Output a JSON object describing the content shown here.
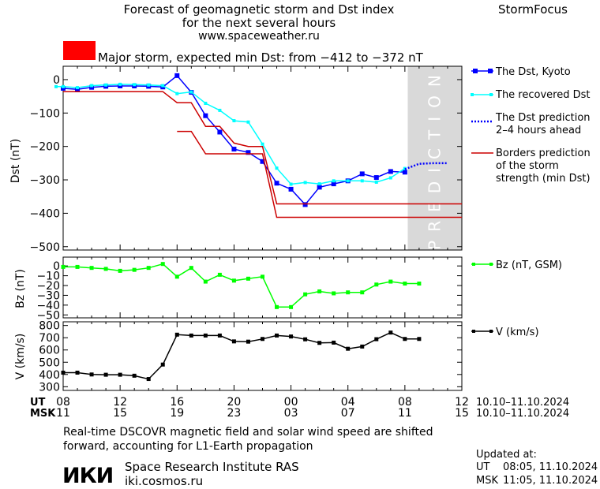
{
  "header": {
    "title_line1": "Forecast of geomagnetic storm and Dst index",
    "title_line2": "for the next several hours",
    "url": "www.spaceweather.ru",
    "brand": "StormFocus"
  },
  "alert": {
    "text": "Major storm, expected min Dst: from −412 to −372 nT",
    "color": "#ff0000"
  },
  "prediction_label": "PREDICTION",
  "legend": {
    "dst_kyoto": "The Dst, Kyoto",
    "recovered": "The recovered Dst",
    "prediction_1": "The Dst prediction",
    "prediction_2": "2–4 hours ahead",
    "borders_1": "Borders prediction",
    "borders_2": "of the storm",
    "borders_3": "strength (min Dst)",
    "bz": "Bz (nT, GSM)",
    "v": "V (km/s)"
  },
  "time_axis": {
    "ut_label": "UT",
    "msk_label": "MSK",
    "ut_ticks": [
      "08",
      "12",
      "16",
      "20",
      "00",
      "04",
      "08",
      "12"
    ],
    "msk_ticks": [
      "11",
      "15",
      "19",
      "23",
      "03",
      "07",
      "11",
      "15"
    ],
    "ut_range": "10.10–11.10.2024",
    "msk_range": "10.10–11.10.2024"
  },
  "footer": {
    "note_line1": "Real-time DSCOVR magnetic field and solar wind speed are shifted",
    "note_line2": "forward, accounting for L1-Earth propagation",
    "logo": "ИКИ",
    "institute": "Space Research Institute RAS",
    "site": "iki.cosmos.ru",
    "updated_label": "Updated at:",
    "updated_ut_label": "UT",
    "updated_ut": "08:05, 11.10.2024",
    "updated_msk_label": "MSK",
    "updated_msk": "11:05, 11.10.2024"
  },
  "colors": {
    "dst_kyoto": "#0000ff",
    "recovered": "#00ffff",
    "prediction": "#0000ff",
    "borders": "#cc0000",
    "bz": "#00ff00",
    "v": "#000000",
    "prediction_zone": "#d9d9d9"
  },
  "chart_data": [
    {
      "type": "line",
      "panel": "Dst",
      "ylabel": "Dst (nT)",
      "xlabel": "UT",
      "x_unit": "hours from 08 UT 10.10.2024",
      "xlim": [
        0,
        28
      ],
      "ylim": [
        -510,
        40
      ],
      "yticks": [
        0,
        -100,
        -200,
        -300,
        -400,
        -500
      ],
      "ytick_labels": [
        "0",
        "−100",
        "−200",
        "−300",
        "−400",
        "−500"
      ],
      "prediction_zone": [
        24.2,
        28
      ],
      "series": [
        {
          "name": "The Dst, Kyoto",
          "x": [
            0,
            1,
            2,
            3,
            4,
            5,
            6,
            7,
            8,
            9,
            10,
            11,
            12,
            13,
            14,
            15,
            16,
            17,
            18,
            19,
            20,
            21,
            22,
            23,
            24
          ],
          "y": [
            -26,
            -29,
            -23,
            -20,
            -19,
            -19,
            -20,
            -22,
            12,
            -38,
            -108,
            -157,
            -208,
            -218,
            -245,
            -310,
            -328,
            -374,
            -322,
            -312,
            -303,
            -282,
            -293,
            -275,
            -277
          ]
        },
        {
          "name": "The recovered Dst",
          "x": [
            -0.5,
            0,
            1,
            2,
            3,
            4,
            5,
            6,
            7,
            8,
            9,
            10,
            11,
            12,
            13,
            14,
            15,
            16,
            17,
            18,
            19,
            20,
            21,
            22,
            23,
            24
          ],
          "y": [
            -21,
            -21,
            -24,
            -18,
            -16,
            -14,
            -15,
            -16,
            -18,
            -42,
            -37,
            -71,
            -92,
            -123,
            -127,
            -193,
            -265,
            -313,
            -308,
            -312,
            -303,
            -303,
            -303,
            -307,
            -294,
            -266
          ]
        },
        {
          "name": "The Dst prediction 2–4 hours ahead",
          "x": [
            24,
            25,
            26,
            27
          ],
          "y": [
            -268,
            -252,
            -250,
            -250
          ]
        },
        {
          "name": "Borders prediction of the storm strength (min Dst)",
          "x": [
            0,
            7,
            8,
            9,
            10,
            11,
            12,
            13,
            14,
            15,
            28
          ],
          "y": [
            -36,
            -36,
            -69,
            -69,
            -140,
            -140,
            -190,
            -200,
            -200,
            -372,
            -372
          ]
        },
        {
          "x": [
            8,
            9,
            10,
            11,
            12,
            13,
            14,
            15,
            28
          ],
          "y": [
            -155,
            -155,
            -222,
            -222,
            -222,
            -222,
            -222,
            -412,
            -412
          ]
        }
      ]
    },
    {
      "type": "line",
      "panel": "Bz",
      "ylabel": "Bz (nT)",
      "xlim": [
        0,
        28
      ],
      "ylim": [
        -53,
        9
      ],
      "yticks": [
        0,
        -10,
        -20,
        -30,
        -40,
        -50
      ],
      "ytick_labels": [
        "0",
        "−10",
        "−20",
        "−30",
        "−40",
        "−50"
      ],
      "series": [
        {
          "name": "Bz (nT, GSM)",
          "x": [
            0,
            1,
            2,
            3,
            4,
            5,
            6,
            7,
            8,
            9,
            10,
            11,
            12,
            13,
            14,
            15,
            16,
            17,
            18,
            19,
            20,
            21,
            22,
            23,
            24,
            25
          ],
          "y": [
            -1,
            -1,
            -2,
            -3,
            -5,
            -4,
            -2,
            2,
            -11,
            -2,
            -16,
            -9,
            -15,
            -13,
            -11,
            -42,
            -42,
            -29,
            -26,
            -28,
            -27,
            -27,
            -19,
            -16,
            -18,
            -18
          ]
        }
      ]
    },
    {
      "type": "line",
      "panel": "V",
      "ylabel": "V (km/s)",
      "xlim": [
        0,
        28
      ],
      "ylim": [
        270,
        830
      ],
      "yticks": [
        300,
        400,
        500,
        600,
        700,
        800
      ],
      "ytick_labels": [
        "300",
        "400",
        "500",
        "600",
        "700",
        "800"
      ],
      "series": [
        {
          "name": "V (km/s)",
          "x": [
            0,
            1,
            2,
            3,
            4,
            5,
            6,
            7,
            8,
            9,
            10,
            11,
            12,
            13,
            14,
            15,
            16,
            17,
            18,
            19,
            20,
            21,
            22,
            23,
            24,
            25
          ],
          "y": [
            415,
            415,
            400,
            398,
            398,
            390,
            363,
            481,
            725,
            718,
            718,
            718,
            670,
            668,
            690,
            718,
            710,
            687,
            658,
            660,
            610,
            628,
            688,
            742,
            690,
            690
          ]
        }
      ]
    }
  ]
}
